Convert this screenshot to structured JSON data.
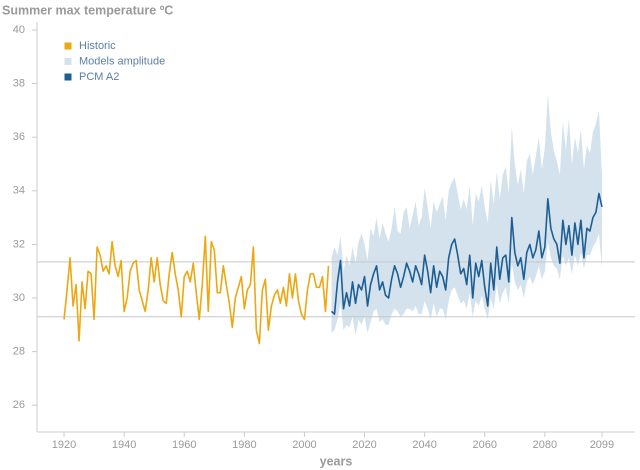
{
  "chart_data": {
    "type": "line",
    "title": "Summer max temperature ºC",
    "x_label": "years",
    "xlim": [
      1911,
      2110
    ],
    "xticks": [
      1920,
      1940,
      1960,
      1980,
      2000,
      2020,
      2040,
      2060,
      2080,
      2099
    ],
    "ylim": [
      25,
      40
    ],
    "yticks": [
      26,
      28,
      30,
      32,
      34,
      36,
      38,
      40
    ],
    "hlines": [
      31.35,
      29.3
    ],
    "hline_color": "#c8c8c8",
    "legend": "top-left",
    "series": [
      {
        "name": "Historic",
        "type": "line",
        "color": "#eda712",
        "x": [
          1920,
          1921,
          1922,
          1923,
          1924,
          1925,
          1926,
          1927,
          1928,
          1929,
          1930,
          1931,
          1932,
          1933,
          1934,
          1935,
          1936,
          1937,
          1938,
          1939,
          1940,
          1941,
          1942,
          1943,
          1944,
          1945,
          1946,
          1947,
          1948,
          1949,
          1950,
          1951,
          1952,
          1953,
          1954,
          1955,
          1956,
          1957,
          1958,
          1959,
          1960,
          1961,
          1962,
          1963,
          1964,
          1965,
          1966,
          1967,
          1968,
          1969,
          1970,
          1971,
          1972,
          1973,
          1974,
          1975,
          1976,
          1977,
          1978,
          1979,
          1980,
          1981,
          1982,
          1983,
          1984,
          1985,
          1986,
          1987,
          1988,
          1989,
          1990,
          1991,
          1992,
          1993,
          1994,
          1995,
          1996,
          1997,
          1998,
          1999,
          2000,
          2001,
          2002,
          2003,
          2004,
          2005,
          2006,
          2007,
          2008
        ],
        "values": [
          29.2,
          30.3,
          31.5,
          29.7,
          30.5,
          28.4,
          30.6,
          29.6,
          31.0,
          30.9,
          29.2,
          31.9,
          31.6,
          31.0,
          31.2,
          30.9,
          32.1,
          31.2,
          30.8,
          31.4,
          29.5,
          30.0,
          31.0,
          31.3,
          31.4,
          30.3,
          29.9,
          29.5,
          30.3,
          31.5,
          30.6,
          31.5,
          30.5,
          29.9,
          29.8,
          30.9,
          31.7,
          30.9,
          30.3,
          29.3,
          30.8,
          31.0,
          30.6,
          31.3,
          30.2,
          29.2,
          30.5,
          32.3,
          29.5,
          32.1,
          31.8,
          30.2,
          30.2,
          31.2,
          30.5,
          29.8,
          28.9,
          30.0,
          30.4,
          30.8,
          29.6,
          30.3,
          30.5,
          31.9,
          28.8,
          28.3,
          30.3,
          30.7,
          28.8,
          29.7,
          30.1,
          30.3,
          29.8,
          30.4,
          29.7,
          30.9,
          30.0,
          30.9,
          29.9,
          29.4,
          29.2,
          30.3,
          30.9,
          30.9,
          30.4,
          30.4,
          30.8,
          29.5,
          31.2
        ]
      },
      {
        "name": "Models amplitude",
        "type": "area",
        "color": "#d3e2ed",
        "x": [
          2009,
          2010,
          2011,
          2012,
          2013,
          2014,
          2015,
          2016,
          2017,
          2018,
          2019,
          2020,
          2021,
          2022,
          2023,
          2024,
          2025,
          2026,
          2027,
          2028,
          2029,
          2030,
          2031,
          2032,
          2033,
          2034,
          2035,
          2036,
          2037,
          2038,
          2039,
          2040,
          2041,
          2042,
          2043,
          2044,
          2045,
          2046,
          2047,
          2048,
          2049,
          2050,
          2051,
          2052,
          2053,
          2054,
          2055,
          2056,
          2057,
          2058,
          2059,
          2060,
          2061,
          2062,
          2063,
          2064,
          2065,
          2066,
          2067,
          2068,
          2069,
          2070,
          2071,
          2072,
          2073,
          2074,
          2075,
          2076,
          2077,
          2078,
          2079,
          2080,
          2081,
          2082,
          2083,
          2084,
          2085,
          2086,
          2087,
          2088,
          2089,
          2090,
          2091,
          2092,
          2093,
          2094,
          2095,
          2096,
          2097,
          2098,
          2099
        ],
        "lower": [
          28.7,
          28.8,
          29.2,
          29.8,
          28.8,
          29.0,
          28.9,
          29.3,
          28.6,
          29.2,
          29.0,
          29.3,
          28.7,
          29.1,
          29.5,
          29.6,
          29.1,
          29.2,
          29.0,
          29.0,
          29.4,
          29.6,
          29.5,
          29.3,
          29.4,
          29.6,
          29.6,
          29.5,
          29.7,
          29.4,
          29.4,
          29.9,
          29.6,
          29.2,
          29.8,
          29.3,
          29.6,
          29.6,
          29.2,
          29.9,
          30.3,
          30.4,
          30.1,
          29.8,
          29.9,
          29.6,
          30.2,
          29.3,
          29.9,
          29.7,
          30.1,
          29.6,
          29.2,
          30.0,
          29.6,
          30.5,
          29.8,
          30.2,
          30.4,
          29.8,
          31.3,
          30.6,
          30.3,
          30.5,
          30.0,
          30.6,
          30.8,
          30.5,
          30.8,
          31.2,
          30.7,
          31.0,
          32.1,
          31.5,
          31.2,
          31.1,
          30.7,
          31.6,
          31.2,
          31.5,
          30.9,
          31.6,
          31.2,
          31.7,
          31.1,
          31.6,
          31.6,
          31.9,
          32.1,
          32.4,
          31.1
        ],
        "upper": [
          31.5,
          31.9,
          31.6,
          32.3,
          31.0,
          31.6,
          31.2,
          31.9,
          31.3,
          32.1,
          32.4,
          32.0,
          31.4,
          32.6,
          32.3,
          33.0,
          32.2,
          32.8,
          32.4,
          32.1,
          32.6,
          33.4,
          32.5,
          32.4,
          33.2,
          33.4,
          32.6,
          33.1,
          33.6,
          32.7,
          33.0,
          34.1,
          33.4,
          32.6,
          33.6,
          33.2,
          33.5,
          33.8,
          32.9,
          34.0,
          34.3,
          34.5,
          33.9,
          33.3,
          33.7,
          33.3,
          34.2,
          32.7,
          33.9,
          33.6,
          34.2,
          33.4,
          32.8,
          34.4,
          33.5,
          34.7,
          33.7,
          34.6,
          34.9,
          33.9,
          36.4,
          35.0,
          34.2,
          34.8,
          33.9,
          35.1,
          35.4,
          34.6,
          35.3,
          36.0,
          34.8,
          35.6,
          37.6,
          36.2,
          35.5,
          35.1,
          34.6,
          36.6,
          35.5,
          36.7,
          35.0,
          36.0,
          35.4,
          36.3,
          34.8,
          35.7,
          35.4,
          36.2,
          36.5,
          37.0,
          34.6
        ]
      },
      {
        "name": "PCM A2",
        "type": "line",
        "color": "#1d5e95",
        "x": [
          2009,
          2010,
          2011,
          2012,
          2013,
          2014,
          2015,
          2016,
          2017,
          2018,
          2019,
          2020,
          2021,
          2022,
          2023,
          2024,
          2025,
          2026,
          2027,
          2028,
          2029,
          2030,
          2031,
          2032,
          2033,
          2034,
          2035,
          2036,
          2037,
          2038,
          2039,
          2040,
          2041,
          2042,
          2043,
          2044,
          2045,
          2046,
          2047,
          2048,
          2049,
          2050,
          2051,
          2052,
          2053,
          2054,
          2055,
          2056,
          2057,
          2058,
          2059,
          2060,
          2061,
          2062,
          2063,
          2064,
          2065,
          2066,
          2067,
          2068,
          2069,
          2070,
          2071,
          2072,
          2073,
          2074,
          2075,
          2076,
          2077,
          2078,
          2079,
          2080,
          2081,
          2082,
          2083,
          2084,
          2085,
          2086,
          2087,
          2088,
          2089,
          2090,
          2091,
          2092,
          2093,
          2094,
          2095,
          2096,
          2097,
          2098,
          2099
        ],
        "values": [
          29.5,
          29.4,
          30.6,
          31.4,
          29.6,
          30.2,
          29.7,
          30.6,
          29.8,
          30.5,
          30.3,
          30.8,
          29.7,
          30.5,
          30.9,
          31.2,
          30.3,
          30.6,
          30.1,
          30.0,
          30.7,
          31.2,
          30.9,
          30.4,
          30.8,
          31.3,
          31.0,
          30.6,
          31.2,
          30.9,
          30.5,
          31.6,
          31.0,
          30.2,
          31.2,
          30.4,
          31.0,
          30.8,
          30.3,
          31.5,
          32.0,
          32.2,
          31.6,
          30.9,
          31.1,
          30.5,
          31.6,
          30.0,
          31.3,
          30.8,
          31.4,
          30.4,
          29.7,
          31.3,
          30.3,
          31.9,
          30.7,
          31.5,
          31.6,
          30.6,
          33.0,
          31.7,
          31.2,
          31.5,
          30.7,
          31.7,
          32.0,
          31.5,
          31.8,
          32.5,
          31.5,
          31.9,
          33.7,
          32.6,
          32.2,
          32.0,
          31.3,
          32.9,
          32.0,
          32.7,
          31.6,
          32.8,
          32.0,
          32.9,
          31.5,
          32.6,
          32.5,
          33.0,
          33.2,
          33.9,
          33.4
        ]
      }
    ]
  }
}
